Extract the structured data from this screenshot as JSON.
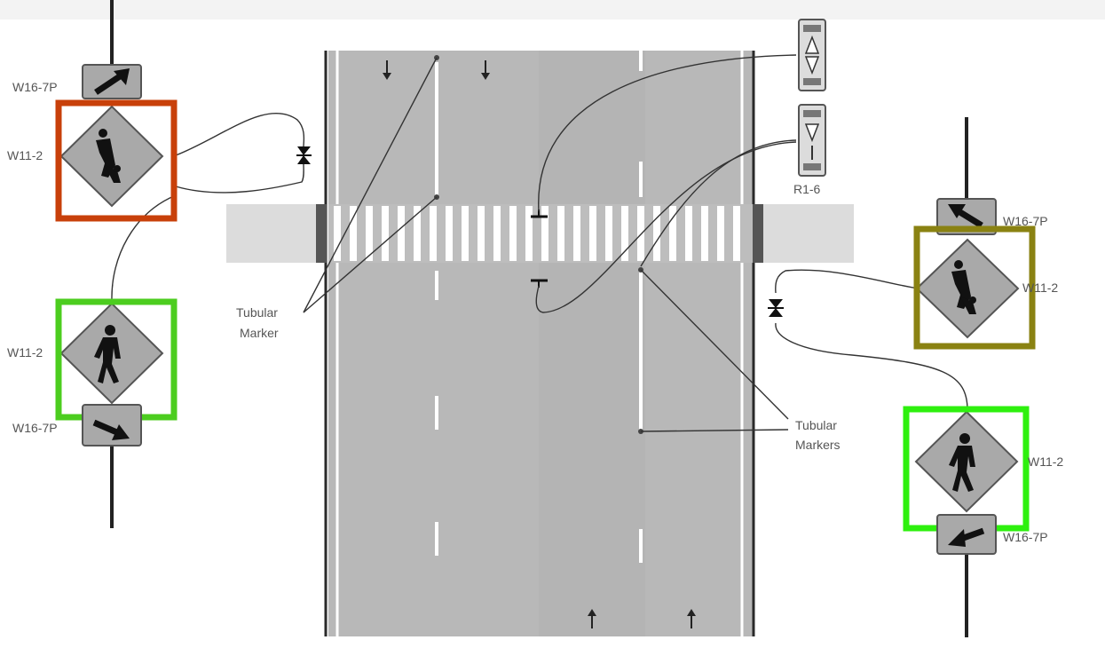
{
  "labels": {
    "w16_7p": "W16-7P",
    "w11_2": "W11-2",
    "r1_6": "R1-6",
    "tubular_marker": "Tubular",
    "tubular_marker_2": "Marker",
    "tubular_markers": "Tubular",
    "tubular_markers_2": "Markers"
  },
  "colors": {
    "road": "#b8b8b8",
    "sidewalk": "#dcdcdc",
    "sign_fill": "#a9a9a9",
    "left_top_highlight": "#c8400a",
    "left_bottom_highlight": "#4ccd1f",
    "right_top_highlight": "#8a8212",
    "right_bottom_highlight": "#2ef00e"
  },
  "icons": {
    "ped_crossing": "pedestrian-crossing-icon",
    "school_children": "school-children-icon",
    "arrow": "diagonal-arrow-icon",
    "in_street_sign": "in-street-sign-icon"
  }
}
